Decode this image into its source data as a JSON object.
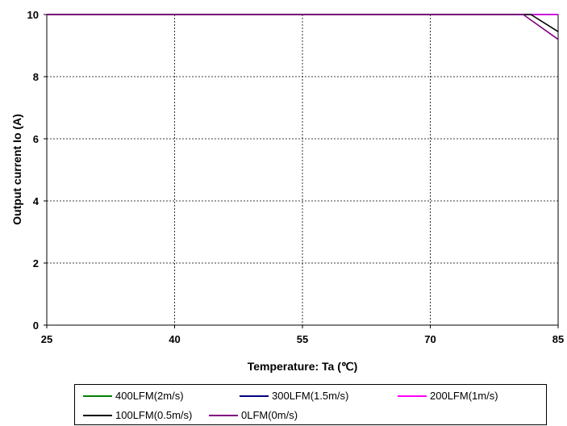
{
  "chart_data": {
    "type": "line",
    "title": "",
    "xlabel": "Temperature: Ta (℃)",
    "ylabel": "Output current Io (A)",
    "xlim": [
      25,
      85
    ],
    "ylim": [
      0,
      10
    ],
    "x_ticks": [
      "25",
      "40",
      "55",
      "70",
      "85"
    ],
    "y_ticks": [
      "0",
      "2",
      "4",
      "6",
      "8",
      "10"
    ],
    "grid": true,
    "legend_position": "bottom",
    "series": [
      {
        "name": "400LFM(2m/s)",
        "color": "#008000",
        "x": [
          25,
          85
        ],
        "y": [
          10,
          10
        ]
      },
      {
        "name": "300LFM(1.5m/s)",
        "color": "#000080",
        "x": [
          25,
          85
        ],
        "y": [
          10,
          10
        ]
      },
      {
        "name": "200LFM(1m/s)",
        "color": "#ff00ff",
        "x": [
          25,
          85
        ],
        "y": [
          10,
          10
        ]
      },
      {
        "name": "100LFM(0.5m/s)",
        "color": "#000000",
        "x": [
          25,
          81.8,
          85
        ],
        "y": [
          10,
          10,
          9.45
        ]
      },
      {
        "name": "0LFM(0m/s)",
        "color": "#800080",
        "x": [
          25,
          80.9,
          85
        ],
        "y": [
          10,
          10,
          9.2
        ]
      }
    ]
  }
}
